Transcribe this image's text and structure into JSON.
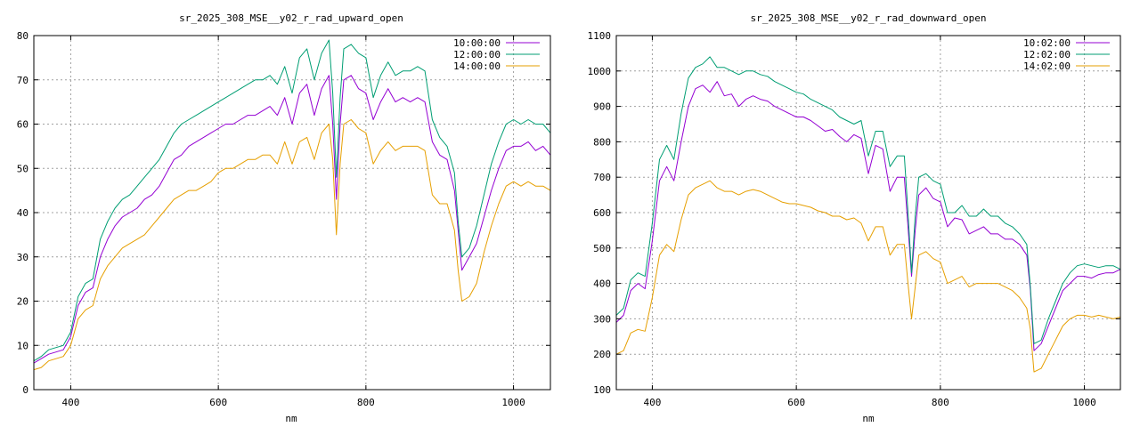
{
  "chart_data": [
    {
      "type": "line",
      "title": "sr_2025_308_MSE__y02_r_rad_upward_open",
      "xlabel": "nm",
      "ylabel": "",
      "xlim": [
        350,
        1050
      ],
      "ylim": [
        0,
        80
      ],
      "xticks": [
        400,
        600,
        800,
        1000
      ],
      "yticks": [
        0,
        10,
        20,
        30,
        40,
        50,
        60,
        70,
        80
      ],
      "grid": true,
      "legend": "top-right",
      "series": [
        {
          "name": "10:00:00",
          "color": "#9400d3",
          "x": [
            350,
            360,
            370,
            380,
            390,
            400,
            410,
            420,
            430,
            440,
            450,
            460,
            470,
            480,
            490,
            500,
            510,
            520,
            530,
            540,
            550,
            560,
            570,
            580,
            590,
            600,
            610,
            620,
            630,
            640,
            650,
            660,
            670,
            680,
            690,
            700,
            710,
            720,
            730,
            740,
            750,
            755,
            760,
            765,
            770,
            780,
            790,
            800,
            810,
            820,
            830,
            840,
            850,
            860,
            870,
            880,
            890,
            900,
            910,
            920,
            925,
            930,
            940,
            950,
            960,
            970,
            980,
            990,
            1000,
            1010,
            1020,
            1030,
            1040,
            1050
          ],
          "y": [
            6,
            7,
            8,
            8.5,
            9,
            12,
            19,
            22,
            23,
            30,
            34,
            37,
            39,
            40,
            41,
            43,
            44,
            46,
            49,
            52,
            53,
            55,
            56,
            57,
            58,
            59,
            60,
            60,
            61,
            62,
            62,
            63,
            64,
            62,
            66,
            60,
            67,
            69,
            62,
            68,
            71,
            60,
            43,
            60,
            70,
            71,
            68,
            67,
            61,
            65,
            68,
            65,
            66,
            65,
            66,
            65,
            56,
            53,
            52,
            45,
            36,
            27,
            30,
            33,
            39,
            45,
            50,
            54,
            55,
            55,
            56,
            54,
            55,
            53
          ]
        },
        {
          "name": "12:00:00",
          "color": "#009e73",
          "x": [
            350,
            360,
            370,
            380,
            390,
            400,
            410,
            420,
            430,
            440,
            450,
            460,
            470,
            480,
            490,
            500,
            510,
            520,
            530,
            540,
            550,
            560,
            570,
            580,
            590,
            600,
            610,
            620,
            630,
            640,
            650,
            660,
            670,
            680,
            690,
            700,
            710,
            720,
            730,
            740,
            750,
            755,
            760,
            765,
            770,
            780,
            790,
            800,
            810,
            820,
            830,
            840,
            850,
            860,
            870,
            880,
            890,
            900,
            910,
            920,
            925,
            930,
            940,
            950,
            960,
            970,
            980,
            990,
            1000,
            1010,
            1020,
            1030,
            1040,
            1050
          ],
          "y": [
            6.5,
            7.5,
            9,
            9.5,
            10,
            13,
            21,
            24,
            25,
            34,
            38,
            41,
            43,
            44,
            46,
            48,
            50,
            52,
            55,
            58,
            60,
            61,
            62,
            63,
            64,
            65,
            66,
            67,
            68,
            69,
            70,
            70,
            71,
            69,
            73,
            67,
            75,
            77,
            70,
            76,
            79,
            67,
            48,
            66,
            77,
            78,
            76,
            75,
            66,
            71,
            74,
            71,
            72,
            72,
            73,
            72,
            61,
            57,
            55,
            49,
            38,
            30,
            32,
            37,
            44,
            51,
            56,
            60,
            61,
            60,
            61,
            60,
            60,
            58
          ]
        },
        {
          "name": "14:00:00",
          "color": "#e69f00",
          "x": [
            350,
            360,
            370,
            380,
            390,
            400,
            410,
            420,
            430,
            440,
            450,
            460,
            470,
            480,
            490,
            500,
            510,
            520,
            530,
            540,
            550,
            560,
            570,
            580,
            590,
            600,
            610,
            620,
            630,
            640,
            650,
            660,
            670,
            680,
            690,
            700,
            710,
            720,
            730,
            740,
            750,
            755,
            760,
            765,
            770,
            780,
            790,
            800,
            810,
            820,
            830,
            840,
            850,
            860,
            870,
            880,
            890,
            900,
            910,
            920,
            925,
            930,
            940,
            950,
            960,
            970,
            980,
            990,
            1000,
            1010,
            1020,
            1030,
            1040,
            1050
          ],
          "y": [
            4.5,
            5,
            6.5,
            7,
            7.5,
            10,
            16,
            18,
            19,
            25,
            28,
            30,
            32,
            33,
            34,
            35,
            37,
            39,
            41,
            43,
            44,
            45,
            45,
            46,
            47,
            49,
            50,
            50,
            51,
            52,
            52,
            53,
            53,
            51,
            56,
            51,
            56,
            57,
            52,
            58,
            60,
            52,
            35,
            51,
            60,
            61,
            59,
            58,
            51,
            54,
            56,
            54,
            55,
            55,
            55,
            54,
            44,
            42,
            42,
            36,
            27,
            20,
            21,
            24,
            31,
            37,
            42,
            46,
            47,
            46,
            47,
            46,
            46,
            45
          ]
        }
      ]
    },
    {
      "type": "line",
      "title": "sr_2025_308_MSE__y02_r_rad_downward_open",
      "xlabel": "nm",
      "ylabel": "",
      "xlim": [
        350,
        1050
      ],
      "ylim": [
        100,
        1100
      ],
      "xticks": [
        400,
        600,
        800,
        1000
      ],
      "yticks": [
        100,
        200,
        300,
        400,
        500,
        600,
        700,
        800,
        900,
        1000,
        1100
      ],
      "grid": true,
      "legend": "top-right",
      "series": [
        {
          "name": "10:02:00",
          "color": "#9400d3",
          "x": [
            350,
            360,
            370,
            380,
            390,
            400,
            410,
            420,
            430,
            440,
            450,
            460,
            470,
            480,
            490,
            500,
            510,
            520,
            530,
            540,
            550,
            560,
            570,
            580,
            590,
            600,
            610,
            620,
            630,
            640,
            650,
            660,
            670,
            680,
            690,
            700,
            710,
            720,
            730,
            740,
            750,
            755,
            760,
            765,
            770,
            780,
            790,
            800,
            810,
            820,
            830,
            840,
            850,
            860,
            870,
            880,
            890,
            900,
            910,
            920,
            925,
            930,
            940,
            950,
            960,
            970,
            980,
            990,
            1000,
            1010,
            1020,
            1030,
            1040,
            1050
          ],
          "y": [
            290,
            310,
            380,
            400,
            385,
            520,
            690,
            730,
            690,
            800,
            900,
            950,
            960,
            940,
            970,
            930,
            935,
            900,
            920,
            930,
            920,
            915,
            900,
            890,
            880,
            870,
            870,
            860,
            845,
            830,
            835,
            815,
            800,
            820,
            810,
            710,
            790,
            780,
            660,
            700,
            700,
            560,
            420,
            550,
            650,
            670,
            640,
            630,
            560,
            585,
            580,
            540,
            550,
            560,
            540,
            540,
            525,
            525,
            510,
            480,
            380,
            210,
            230,
            280,
            330,
            380,
            400,
            420,
            420,
            415,
            425,
            430,
            430,
            440
          ]
        },
        {
          "name": "12:02:00",
          "color": "#009e73",
          "x": [
            350,
            360,
            370,
            380,
            390,
            400,
            410,
            420,
            430,
            440,
            450,
            460,
            470,
            480,
            490,
            500,
            510,
            520,
            530,
            540,
            550,
            560,
            570,
            580,
            590,
            600,
            610,
            620,
            630,
            640,
            650,
            660,
            670,
            680,
            690,
            700,
            710,
            720,
            730,
            740,
            750,
            755,
            760,
            765,
            770,
            780,
            790,
            800,
            810,
            820,
            830,
            840,
            850,
            860,
            870,
            880,
            890,
            900,
            910,
            920,
            925,
            930,
            940,
            950,
            960,
            970,
            980,
            990,
            1000,
            1010,
            1020,
            1030,
            1040,
            1050
          ],
          "y": [
            310,
            330,
            410,
            430,
            420,
            570,
            750,
            790,
            750,
            880,
            980,
            1010,
            1020,
            1040,
            1010,
            1010,
            1000,
            990,
            1000,
            1000,
            990,
            985,
            970,
            960,
            950,
            940,
            935,
            920,
            910,
            900,
            890,
            870,
            860,
            850,
            860,
            760,
            830,
            830,
            730,
            760,
            760,
            600,
            430,
            590,
            700,
            710,
            690,
            680,
            600,
            600,
            620,
            590,
            590,
            610,
            590,
            590,
            570,
            560,
            540,
            510,
            390,
            230,
            240,
            300,
            350,
            400,
            430,
            450,
            455,
            450,
            445,
            450,
            450,
            440
          ]
        },
        {
          "name": "14:02:00",
          "color": "#e69f00",
          "x": [
            350,
            360,
            370,
            380,
            390,
            400,
            410,
            420,
            430,
            440,
            450,
            460,
            470,
            480,
            490,
            500,
            510,
            520,
            530,
            540,
            550,
            560,
            570,
            580,
            590,
            600,
            610,
            620,
            630,
            640,
            650,
            660,
            670,
            680,
            690,
            700,
            710,
            720,
            730,
            740,
            750,
            755,
            760,
            765,
            770,
            780,
            790,
            800,
            810,
            820,
            830,
            840,
            850,
            860,
            870,
            880,
            890,
            900,
            910,
            920,
            925,
            930,
            940,
            950,
            960,
            970,
            980,
            990,
            1000,
            1010,
            1020,
            1030,
            1040,
            1050
          ],
          "y": [
            200,
            210,
            260,
            270,
            265,
            360,
            480,
            510,
            490,
            580,
            650,
            670,
            680,
            690,
            670,
            660,
            660,
            650,
            660,
            665,
            660,
            650,
            640,
            630,
            625,
            625,
            620,
            615,
            605,
            600,
            590,
            590,
            580,
            585,
            570,
            520,
            560,
            560,
            480,
            510,
            510,
            400,
            300,
            390,
            480,
            490,
            470,
            460,
            400,
            410,
            420,
            390,
            400,
            400,
            400,
            400,
            390,
            380,
            360,
            330,
            270,
            150,
            160,
            200,
            240,
            280,
            300,
            310,
            310,
            305,
            310,
            305,
            300,
            305
          ]
        }
      ]
    }
  ]
}
